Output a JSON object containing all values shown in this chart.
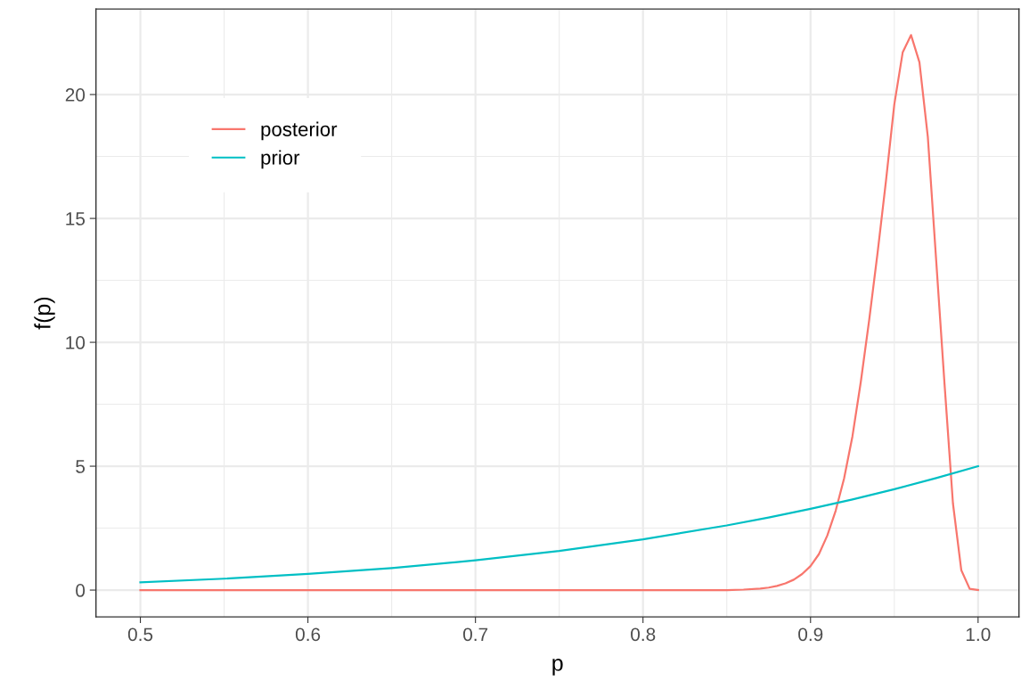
{
  "chart_data": {
    "type": "line",
    "xlabel": "p",
    "ylabel": "f(p)",
    "xlim": [
      0.4735,
      1.0244
    ],
    "xticks": [
      {
        "value": 0.5,
        "label": "0.5"
      },
      {
        "value": 0.6,
        "label": "0.6"
      },
      {
        "value": 0.7,
        "label": "0.7"
      },
      {
        "value": 0.8,
        "label": "0.8"
      },
      {
        "value": 0.9,
        "label": "0.9"
      },
      {
        "value": 1.0,
        "label": "1.0"
      }
    ],
    "ylim": [
      -1.08,
      23.45
    ],
    "yticks": [
      0,
      5,
      10,
      15,
      20
    ],
    "grid": true,
    "legend": "top left",
    "series": [
      {
        "name": "posterior",
        "color": "#f8766d",
        "x": [
          0.5,
          0.6,
          0.7,
          0.8,
          0.85,
          0.86,
          0.87,
          0.875,
          0.88,
          0.885,
          0.89,
          0.895,
          0.9,
          0.905,
          0.91,
          0.915,
          0.92,
          0.925,
          0.93,
          0.935,
          0.94,
          0.945,
          0.95,
          0.955,
          0.96,
          0.965,
          0.97,
          0.975,
          0.98,
          0.985,
          0.99,
          0.995,
          1.0
        ],
        "values": [
          0,
          0,
          0,
          0,
          0,
          0.02,
          0.06,
          0.1,
          0.17,
          0.27,
          0.42,
          0.65,
          0.97,
          1.45,
          2.2,
          3.2,
          4.5,
          6.2,
          8.4,
          10.9,
          13.6,
          16.5,
          19.6,
          21.7,
          22.4,
          21.3,
          18.3,
          13.3,
          8.3,
          3.5,
          0.8,
          0.05,
          0
        ]
      },
      {
        "name": "prior",
        "color": "#00bfc4",
        "x": [
          0.5,
          0.55,
          0.6,
          0.65,
          0.7,
          0.75,
          0.8,
          0.85,
          0.875,
          0.9,
          0.925,
          0.95,
          0.975,
          1.0
        ],
        "values": [
          0.31,
          0.46,
          0.65,
          0.89,
          1.2,
          1.58,
          2.05,
          2.61,
          2.93,
          3.28,
          3.66,
          4.07,
          4.52,
          5.0
        ]
      }
    ]
  }
}
